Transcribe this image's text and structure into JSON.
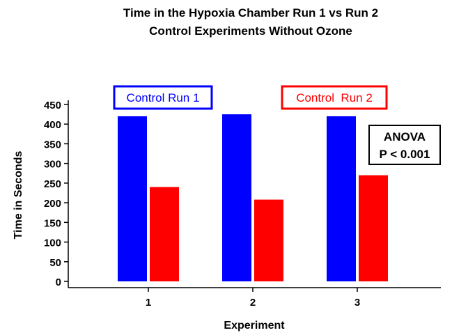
{
  "chart_data": {
    "type": "bar",
    "title": "Time in the Hypoxia Chamber Run 1 vs Run 2",
    "subtitle": "Control Experiments Without Ozone",
    "xlabel": "Experiment",
    "ylabel": "Time in Seconds",
    "ylim": [
      0,
      450
    ],
    "yticks": [
      0,
      50,
      100,
      150,
      200,
      250,
      300,
      350,
      400,
      450
    ],
    "categories": [
      "1",
      "2",
      "3"
    ],
    "series": [
      {
        "name": "Control Run 1",
        "color": "#0000ff",
        "values": [
          420,
          425,
          420
        ]
      },
      {
        "name": "Control  Run 2",
        "color": "#ff0000",
        "values": [
          240,
          208,
          270
        ]
      }
    ],
    "grid": false,
    "legend": "top",
    "annotation": {
      "line1": "ANOVA",
      "line2": "P < 0.001"
    }
  }
}
